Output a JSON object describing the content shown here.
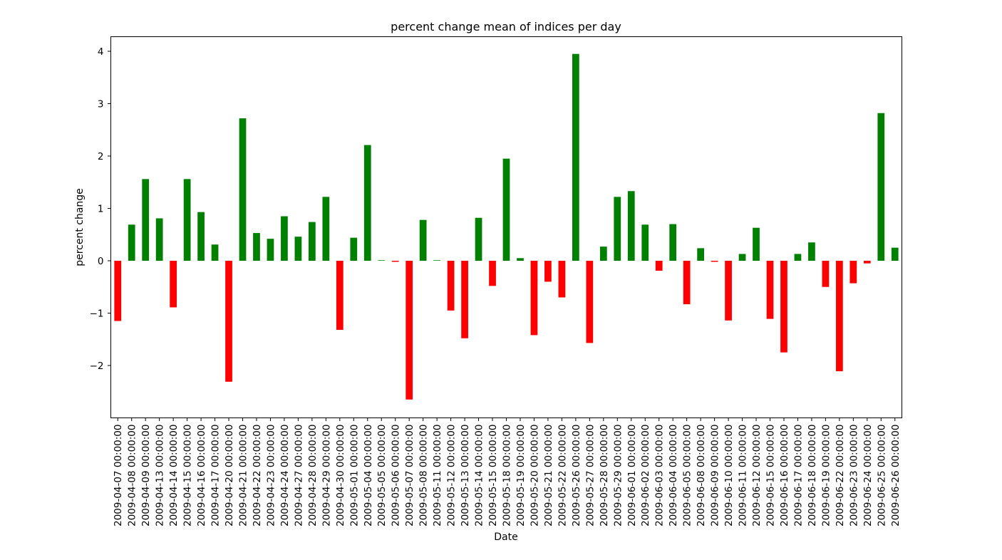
{
  "chart_data": {
    "type": "bar",
    "title": "percent change mean of indices per day",
    "xlabel": "Date",
    "ylabel": "percent change",
    "ylim": [
      -3.0,
      4.3
    ],
    "yticks": [
      -2,
      -1,
      0,
      1,
      2,
      3,
      4
    ],
    "ytick_labels": [
      "−2",
      "−1",
      "0",
      "1",
      "2",
      "3",
      "4"
    ],
    "grid": false,
    "colors": {
      "positive": "#008000",
      "negative": "#ff0000"
    },
    "categories": [
      "2009-04-07 00:00:00",
      "2009-04-08 00:00:00",
      "2009-04-09 00:00:00",
      "2009-04-13 00:00:00",
      "2009-04-14 00:00:00",
      "2009-04-15 00:00:00",
      "2009-04-16 00:00:00",
      "2009-04-17 00:00:00",
      "2009-04-20 00:00:00",
      "2009-04-21 00:00:00",
      "2009-04-22 00:00:00",
      "2009-04-23 00:00:00",
      "2009-04-24 00:00:00",
      "2009-04-27 00:00:00",
      "2009-04-28 00:00:00",
      "2009-04-29 00:00:00",
      "2009-04-30 00:00:00",
      "2009-05-01 00:00:00",
      "2009-05-04 00:00:00",
      "2009-05-05 00:00:00",
      "2009-05-06 00:00:00",
      "2009-05-07 00:00:00",
      "2009-05-08 00:00:00",
      "2009-05-11 00:00:00",
      "2009-05-12 00:00:00",
      "2009-05-13 00:00:00",
      "2009-05-14 00:00:00",
      "2009-05-15 00:00:00",
      "2009-05-18 00:00:00",
      "2009-05-19 00:00:00",
      "2009-05-20 00:00:00",
      "2009-05-21 00:00:00",
      "2009-05-22 00:00:00",
      "2009-05-26 00:00:00",
      "2009-05-27 00:00:00",
      "2009-05-28 00:00:00",
      "2009-05-29 00:00:00",
      "2009-06-01 00:00:00",
      "2009-06-02 00:00:00",
      "2009-06-03 00:00:00",
      "2009-06-04 00:00:00",
      "2009-06-05 00:00:00",
      "2009-06-08 00:00:00",
      "2009-06-09 00:00:00",
      "2009-06-10 00:00:00",
      "2009-06-11 00:00:00",
      "2009-06-12 00:00:00",
      "2009-06-15 00:00:00",
      "2009-06-16 00:00:00",
      "2009-06-17 00:00:00",
      "2009-06-18 00:00:00",
      "2009-06-19 00:00:00",
      "2009-06-22 00:00:00",
      "2009-06-23 00:00:00",
      "2009-06-24 00:00:00",
      "2009-06-25 00:00:00",
      "2009-06-26 00:00:00"
    ],
    "values": [
      -1.15,
      0.69,
      1.56,
      0.81,
      -0.89,
      1.56,
      0.93,
      0.31,
      -2.31,
      2.72,
      0.53,
      0.42,
      0.85,
      0.46,
      0.74,
      1.22,
      -1.32,
      0.44,
      2.21,
      0.01,
      -0.02,
      -2.65,
      0.78,
      0.01,
      -0.95,
      -1.48,
      0.82,
      -0.48,
      1.95,
      0.05,
      -1.42,
      -0.4,
      -0.7,
      3.95,
      -1.57,
      0.27,
      1.22,
      1.33,
      0.69,
      -0.19,
      0.7,
      -0.83,
      0.24,
      -0.02,
      -1.14,
      0.13,
      0.63,
      -1.11,
      -1.75,
      0.13,
      0.35,
      -0.5,
      -2.11,
      -0.43,
      -0.05,
      2.82,
      0.25
    ]
  }
}
